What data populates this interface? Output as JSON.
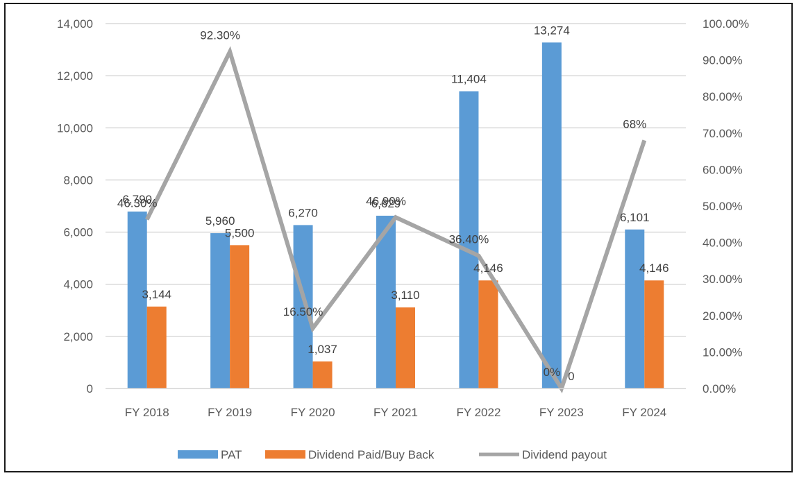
{
  "chart_data": {
    "type": "bar",
    "categories": [
      "FY 2018",
      "FY 2019",
      "FY 2020",
      "FY 2021",
      "FY 2022",
      "FY 2023",
      "FY 2024"
    ],
    "series": [
      {
        "name": "PAT",
        "kind": "bar",
        "axis": "left",
        "color": "#5B9BD5",
        "values": [
          6790,
          5960,
          6270,
          6629,
          11404,
          13274,
          6101
        ],
        "labels": [
          "6,790",
          "5,960",
          "6,270",
          "6,629",
          "11,404",
          "13,274",
          "6,101"
        ]
      },
      {
        "name": "Dividend Paid/Buy Back",
        "kind": "bar",
        "axis": "left",
        "color": "#ED7D31",
        "values": [
          3144,
          5500,
          1037,
          3110,
          4146,
          0,
          4146
        ],
        "labels": [
          "3,144",
          "5,500",
          "1,037",
          "3,110",
          "4,146",
          "0",
          "4,146"
        ]
      },
      {
        "name": "Dividend payout",
        "kind": "line",
        "axis": "right",
        "color": "#A5A5A5",
        "values": [
          46.3,
          92.3,
          16.5,
          46.9,
          36.4,
          0,
          68
        ],
        "labels": [
          "46.30%",
          "92.30%",
          "16.50%",
          "46.90%",
          "36.40%",
          "0%",
          "68%"
        ]
      }
    ],
    "y_left": {
      "ylim": [
        0,
        14000
      ],
      "ticks": [
        "0",
        "2,000",
        "4,000",
        "6,000",
        "8,000",
        "10,000",
        "12,000",
        "14,000"
      ]
    },
    "y_right": {
      "ylim": [
        0,
        100
      ],
      "ticks": [
        "0.00%",
        "10.00%",
        "20.00%",
        "30.00%",
        "40.00%",
        "50.00%",
        "60.00%",
        "70.00%",
        "80.00%",
        "90.00%",
        "100.00%"
      ]
    },
    "grid": true,
    "legend_position": "bottom",
    "title": "",
    "xlabel": "",
    "ylabel": ""
  }
}
